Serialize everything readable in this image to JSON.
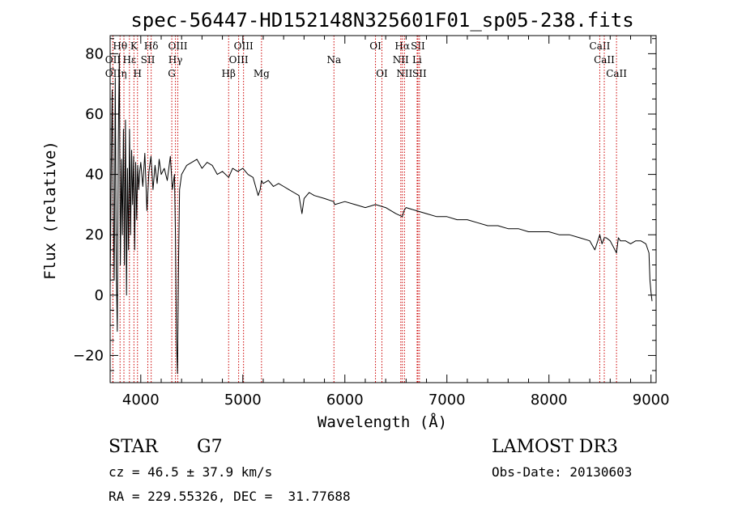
{
  "chart_data": {
    "type": "line",
    "title": "spec-56447-HD152148N325601F01_sp05-238.fits",
    "xlabel": "Wavelength (Å)",
    "ylabel": "Flux (relative)",
    "xlim": [
      3700,
      9050
    ],
    "ylim": [
      -29,
      86
    ],
    "x_ticks": [
      4000,
      5000,
      6000,
      7000,
      8000,
      9000
    ],
    "x_tick_labels": [
      "4000",
      "5000",
      "6000",
      "7000",
      "8000",
      "9000"
    ],
    "y_ticks": [
      -20,
      0,
      20,
      40,
      60,
      80
    ],
    "y_tick_labels": [
      "−20",
      "0",
      "20",
      "40",
      "60",
      "80"
    ],
    "series": [
      {
        "name": "flux",
        "color": "#000000",
        "x": [
          3700,
          3710,
          3720,
          3730,
          3740,
          3750,
          3760,
          3770,
          3780,
          3790,
          3800,
          3810,
          3820,
          3830,
          3840,
          3850,
          3860,
          3870,
          3880,
          3890,
          3900,
          3910,
          3920,
          3930,
          3940,
          3950,
          3960,
          3970,
          3980,
          3990,
          4000,
          4020,
          4040,
          4060,
          4080,
          4100,
          4120,
          4140,
          4160,
          4180,
          4200,
          4230,
          4260,
          4290,
          4310,
          4330,
          4340,
          4350,
          4360,
          4370,
          4380,
          4400,
          4450,
          4500,
          4550,
          4600,
          4650,
          4700,
          4750,
          4800,
          4861,
          4900,
          4950,
          5000,
          5050,
          5100,
          5150,
          5170,
          5183,
          5200,
          5250,
          5300,
          5350,
          5400,
          5450,
          5500,
          5550,
          5580,
          5600,
          5650,
          5700,
          5800,
          5890,
          5900,
          6000,
          6100,
          6200,
          6300,
          6400,
          6500,
          6563,
          6580,
          6600,
          6700,
          6800,
          6900,
          7000,
          7100,
          7200,
          7300,
          7400,
          7500,
          7600,
          7700,
          7800,
          7900,
          8000,
          8100,
          8200,
          8300,
          8400,
          8450,
          8498,
          8520,
          8542,
          8560,
          8600,
          8662,
          8680,
          8700,
          8750,
          8800,
          8850,
          8900,
          8950,
          8980,
          8990,
          9000,
          9010
        ],
        "values": [
          2,
          40,
          68,
          30,
          5,
          72,
          8,
          -12,
          50,
          80,
          10,
          45,
          20,
          55,
          10,
          58,
          0,
          42,
          15,
          55,
          20,
          48,
          30,
          46,
          15,
          44,
          25,
          43,
          35,
          41,
          44,
          36,
          47,
          28,
          41,
          46,
          35,
          43,
          37,
          45,
          40,
          42,
          38,
          46,
          35,
          40,
          20,
          -15,
          -26,
          10,
          35,
          40,
          43,
          44,
          45,
          42,
          44,
          43,
          40,
          41,
          39,
          42,
          41,
          42,
          40,
          39,
          33,
          35,
          38,
          37,
          38,
          36,
          37,
          36,
          35,
          34,
          33,
          27,
          32,
          34,
          33,
          32,
          31,
          30,
          31,
          30,
          29,
          30,
          29,
          27,
          26,
          28,
          29,
          28,
          27,
          26,
          26,
          25,
          25,
          24,
          23,
          23,
          22,
          22,
          21,
          21,
          21,
          20,
          20,
          19,
          18,
          15,
          20,
          17,
          19,
          19,
          18,
          14,
          19,
          18,
          18,
          17,
          18,
          18,
          17,
          14,
          5,
          1,
          -2
        ]
      }
    ],
    "line_markers": [
      {
        "label": "Hβ",
        "x": 4861,
        "row": 2
      },
      {
        "label": "Mg",
        "x": 5183,
        "row": 2
      },
      {
        "label": "Na",
        "x": 5893,
        "row": 1
      },
      {
        "label": "OI",
        "x": 6300,
        "row": 0
      },
      {
        "label": "OI",
        "x": 6363,
        "row": 2
      },
      {
        "label": "Hα",
        "x": 6563,
        "row": 0
      },
      {
        "label": "NII",
        "x": 6548,
        "row": 1
      },
      {
        "label": "NII",
        "x": 6584,
        "row": 2
      },
      {
        "label": "SII",
        "x": 6716,
        "row": 0
      },
      {
        "label": "Li",
        "x": 6708,
        "row": 1
      },
      {
        "label": "SII",
        "x": 6731,
        "row": 2
      },
      {
        "label": "CaII",
        "x": 8498,
        "row": 0
      },
      {
        "label": "CaII",
        "x": 8542,
        "row": 1
      },
      {
        "label": "CaII",
        "x": 8662,
        "row": 2
      },
      {
        "label": "Hδ",
        "x": 4102,
        "row": 0
      },
      {
        "label": "K",
        "x": 3933,
        "row": 0
      },
      {
        "label": "Hθ",
        "x": 3797,
        "row": 0
      },
      {
        "label": "OII",
        "x": 3727,
        "row": 1
      },
      {
        "label": "OII",
        "x": 3727,
        "row": 2
      },
      {
        "label": "Hε",
        "x": 3889,
        "row": 1
      },
      {
        "label": "η",
        "x": 3835,
        "row": 2
      },
      {
        "label": "H",
        "x": 3968,
        "row": 2
      },
      {
        "label": "SII",
        "x": 4069,
        "row": 1
      },
      {
        "label": "OIII",
        "x": 4363,
        "row": 0
      },
      {
        "label": "Hγ",
        "x": 4340,
        "row": 1
      },
      {
        "label": "G",
        "x": 4304,
        "row": 2
      },
      {
        "label": "OIII",
        "x": 5007,
        "row": 0
      },
      {
        "label": "OIII",
        "x": 4959,
        "row": 1
      }
    ],
    "marker_color": "#cc0000"
  },
  "info": {
    "object_class": "STAR",
    "subclass": "G7",
    "survey": "LAMOST DR3",
    "cz": "cz = 46.5 ± 37.9 km/s",
    "obs_date": "Obs-Date: 20130603",
    "coords": "RA = 229.55326, DEC =  31.77688"
  }
}
